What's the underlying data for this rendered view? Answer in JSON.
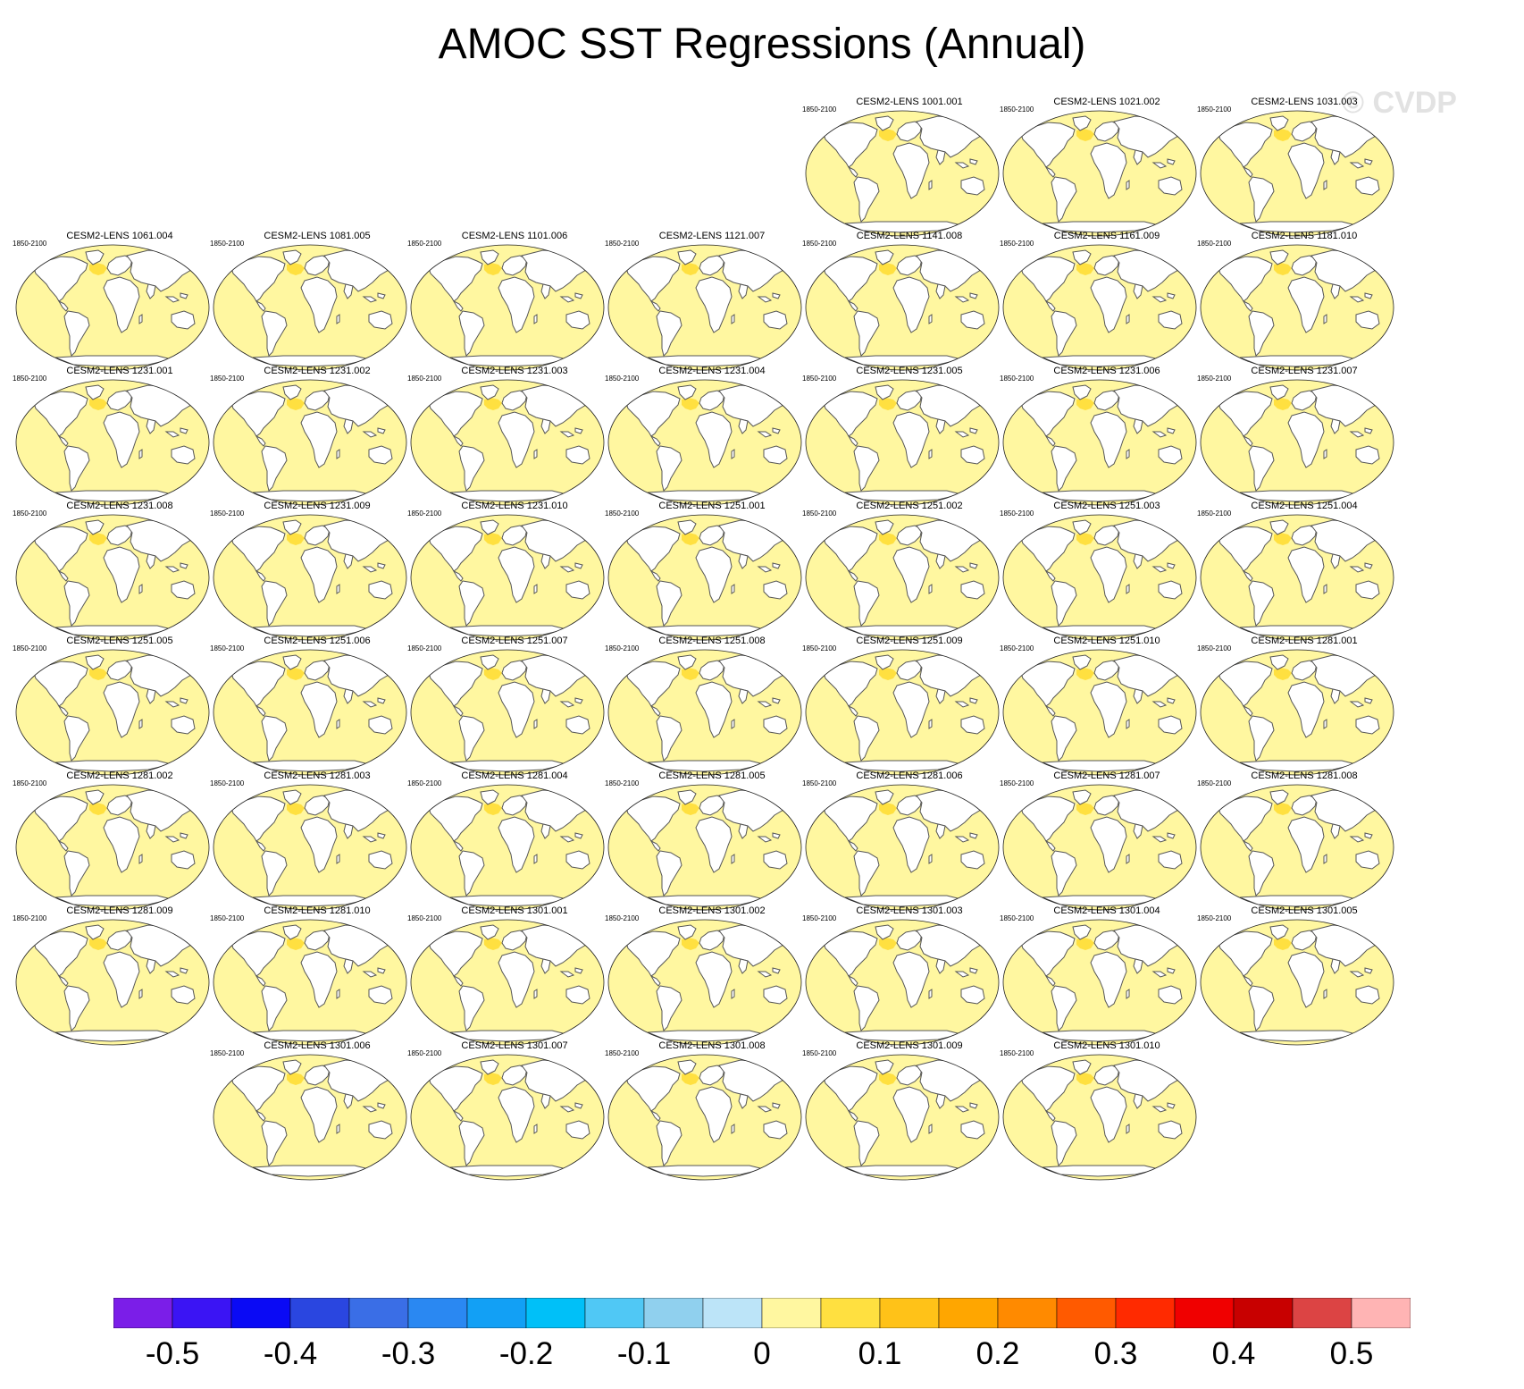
{
  "chart_data": {
    "type": "heatmap",
    "title": "AMOC SST Regressions (Annual)",
    "watermark": "© CVDP",
    "period": "1850-2100",
    "panel_titles": [
      "CESM2-LENS 1001.001",
      "CESM2-LENS 1021.002",
      "CESM2-LENS 1031.003",
      "CESM2-LENS 1061.004",
      "CESM2-LENS 1081.005",
      "CESM2-LENS 1101.006",
      "CESM2-LENS 1121.007",
      "CESM2-LENS 1141.008",
      "CESM2-LENS 1161.009",
      "CESM2-LENS 1181.010",
      "CESM2-LENS 1231.001",
      "CESM2-LENS 1231.002",
      "CESM2-LENS 1231.003",
      "CESM2-LENS 1231.004",
      "CESM2-LENS 1231.005",
      "CESM2-LENS 1231.006",
      "CESM2-LENS 1231.007",
      "CESM2-LENS 1231.008",
      "CESM2-LENS 1231.009",
      "CESM2-LENS 1231.010",
      "CESM2-LENS 1251.001",
      "CESM2-LENS 1251.002",
      "CESM2-LENS 1251.003",
      "CESM2-LENS 1251.004",
      "CESM2-LENS 1251.005",
      "CESM2-LENS 1251.006",
      "CESM2-LENS 1251.007",
      "CESM2-LENS 1251.008",
      "CESM2-LENS 1251.009",
      "CESM2-LENS 1251.010",
      "CESM2-LENS 1281.001",
      "CESM2-LENS 1281.002",
      "CESM2-LENS 1281.003",
      "CESM2-LENS 1281.004",
      "CESM2-LENS 1281.005",
      "CESM2-LENS 1281.006",
      "CESM2-LENS 1281.007",
      "CESM2-LENS 1281.008",
      "CESM2-LENS 1281.009",
      "CESM2-LENS 1281.010",
      "CESM2-LENS 1301.001",
      "CESM2-LENS 1301.002",
      "CESM2-LENS 1301.003",
      "CESM2-LENS 1301.004",
      "CESM2-LENS 1301.005",
      "CESM2-LENS 1301.006",
      "CESM2-LENS 1301.007",
      "CESM2-LENS 1301.008",
      "CESM2-LENS 1301.009",
      "CESM2-LENS 1301.010"
    ],
    "field_summary": {
      "global_ocean_value": 0.0,
      "north_atlantic_value": 0.05
    },
    "colorbar": {
      "range": [
        -0.55,
        0.55
      ],
      "step": 0.05,
      "tick_labels": [
        "-0.5",
        "-0.4",
        "-0.3",
        "-0.2",
        "-0.1",
        "0",
        "0.1",
        "0.2",
        "0.3",
        "0.4",
        "0.5"
      ],
      "tick_values": [
        -0.5,
        -0.4,
        -0.3,
        -0.2,
        -0.1,
        0,
        0.1,
        0.2,
        0.3,
        0.4,
        0.5
      ],
      "colors": [
        "#7b1ee8",
        "#3b14f4",
        "#0a0af5",
        "#2a46e0",
        "#3a6ee6",
        "#2a88f2",
        "#12a0f5",
        "#00c0f8",
        "#50c8f5",
        "#90d0ee",
        "#bce4f8",
        "#fff7a0",
        "#ffe040",
        "#ffc218",
        "#ffa600",
        "#ff8a00",
        "#ff5a00",
        "#ff2a00",
        "#f00000",
        "#c80000",
        "#dc4444",
        "#ffb4b4"
      ]
    },
    "colors": {
      "ocean": "#bde3f7",
      "land": "#ffffff",
      "coast": "#555555",
      "north_atlantic": "#fff7a0"
    }
  }
}
